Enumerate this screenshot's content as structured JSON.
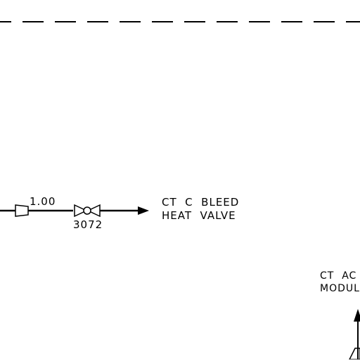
{
  "colors": {
    "line": "#000000",
    "background": "#ffffff"
  },
  "pipe": {
    "size_label": "1.00",
    "valve_tag": "3072",
    "destination_line1": "CT  C  BLEED",
    "destination_line2": "HEAT  VALVE"
  },
  "partial_label": {
    "line1": "CT  AC",
    "line2": "MODUL"
  }
}
